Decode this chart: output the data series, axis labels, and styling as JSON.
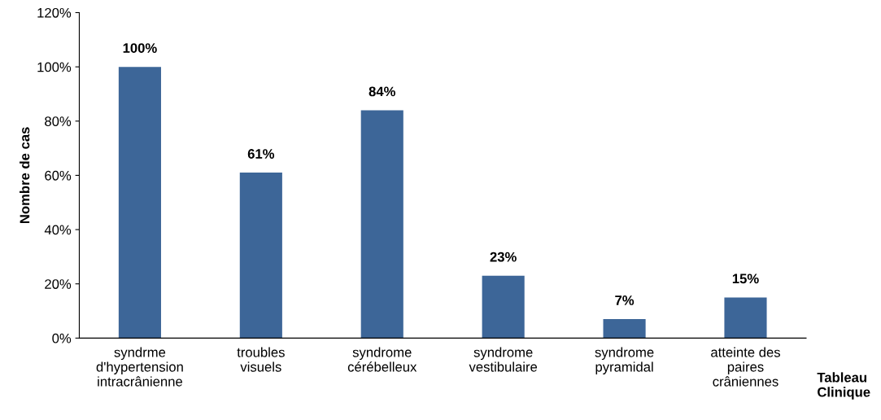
{
  "chart_data": {
    "type": "bar",
    "categories": [
      "syndrme\nd'hypertension\nintracrânienne",
      "troubles\nvisuels",
      "syndrome\ncérébelleux",
      "syndrome\nvestibulaire",
      "syndrome\npyramidal",
      "atteinte des\npaires\ncrâniennes"
    ],
    "values": [
      100,
      61,
      84,
      23,
      7,
      15
    ],
    "value_labels": [
      "100%",
      "61%",
      "84%",
      "23%",
      "7%",
      "15%"
    ],
    "color": "#3d6698",
    "xlabel": "Tableau\nClinique",
    "ylabel": "Nombre de cas",
    "ylim": [
      0,
      120
    ],
    "yticks": [
      {
        "value": 0,
        "label": "0%"
      },
      {
        "value": 20,
        "label": "20%"
      },
      {
        "value": 40,
        "label": "40%"
      },
      {
        "value": 60,
        "label": "60%"
      },
      {
        "value": 80,
        "label": "80%"
      },
      {
        "value": 100,
        "label": "100%"
      },
      {
        "value": 120,
        "label": "120%"
      }
    ],
    "grid": false,
    "legend": false
  }
}
